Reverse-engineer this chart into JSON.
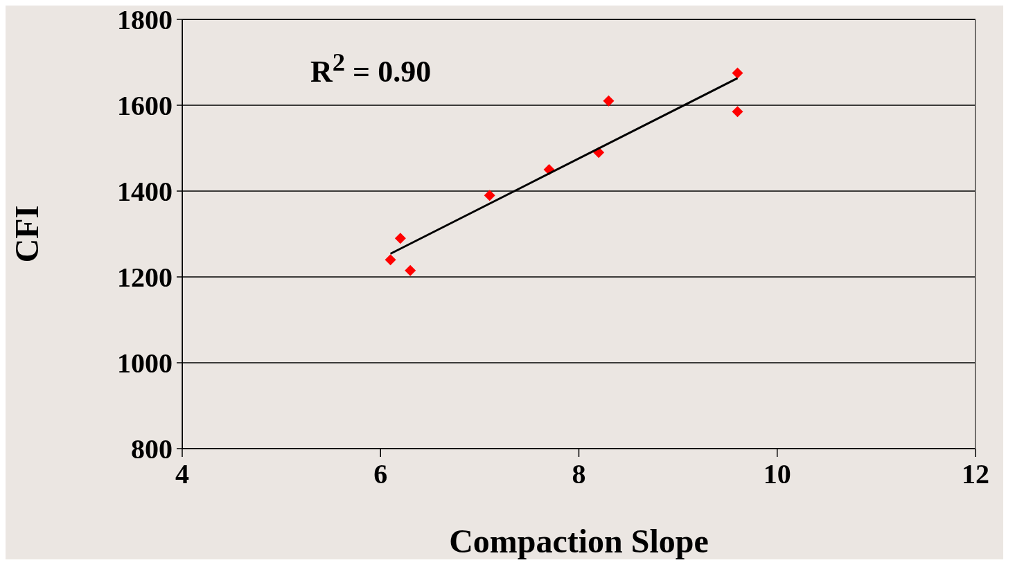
{
  "chart_data": {
    "type": "scatter",
    "xlabel": "Compaction Slope",
    "ylabel": "CFI",
    "xlim": [
      4,
      12
    ],
    "xticks": [
      4,
      6,
      8,
      10,
      12
    ],
    "ylim": [
      800,
      1800
    ],
    "yticks": [
      800,
      1000,
      1200,
      1400,
      1600,
      1800
    ],
    "grid": "y",
    "marker": "diamond",
    "annotations": [
      "R$^{2}$ = 0.90"
    ],
    "series": [
      {
        "color": "#ff0000",
        "x": [
          6.1,
          6.2,
          6.3,
          7.1,
          7.7,
          8.2,
          8.3,
          9.6,
          9.6
        ],
        "values": [
          1240,
          1290,
          1215,
          1390,
          1450,
          1490,
          1610,
          1675,
          1585
        ]
      },
      {
        "type": "line",
        "color": "#000000",
        "marker": "none",
        "x": [
          6.1,
          9.6
        ],
        "values": [
          1254,
          1663
        ]
      }
    ]
  }
}
